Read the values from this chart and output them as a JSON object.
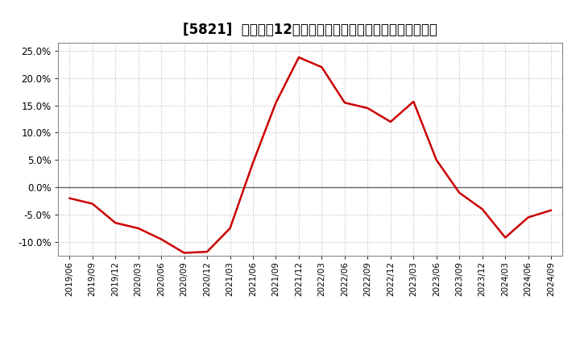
{
  "title": "[5821]  売上高の12か月移動合計の対前年同期増減率の推移",
  "line_color": "#cc0000",
  "background_color": "#ffffff",
  "plot_bg_color": "#ffffff",
  "grid_color": "#bbbbbb",
  "zero_line_color": "#666666",
  "ylim": [
    -0.125,
    0.265
  ],
  "yticks": [
    -0.1,
    -0.05,
    0.0,
    0.05,
    0.1,
    0.15,
    0.2,
    0.25
  ],
  "dates": [
    "2019/06",
    "2019/09",
    "2019/12",
    "2020/03",
    "2020/06",
    "2020/09",
    "2020/12",
    "2021/03",
    "2021/06",
    "2021/09",
    "2021/12",
    "2022/03",
    "2022/06",
    "2022/09",
    "2022/12",
    "2023/03",
    "2023/06",
    "2023/09",
    "2023/12",
    "2024/03",
    "2024/06",
    "2024/09"
  ],
  "values": [
    -0.02,
    -0.03,
    -0.065,
    -0.075,
    -0.095,
    -0.12,
    -0.118,
    -0.075,
    0.045,
    0.155,
    0.238,
    0.22,
    0.155,
    0.145,
    0.12,
    0.157,
    0.05,
    -0.01,
    -0.04,
    -0.092,
    -0.055,
    -0.042
  ],
  "title_fontsize": 12,
  "tick_fontsize": 8.5,
  "xtick_fontsize": 7.5
}
